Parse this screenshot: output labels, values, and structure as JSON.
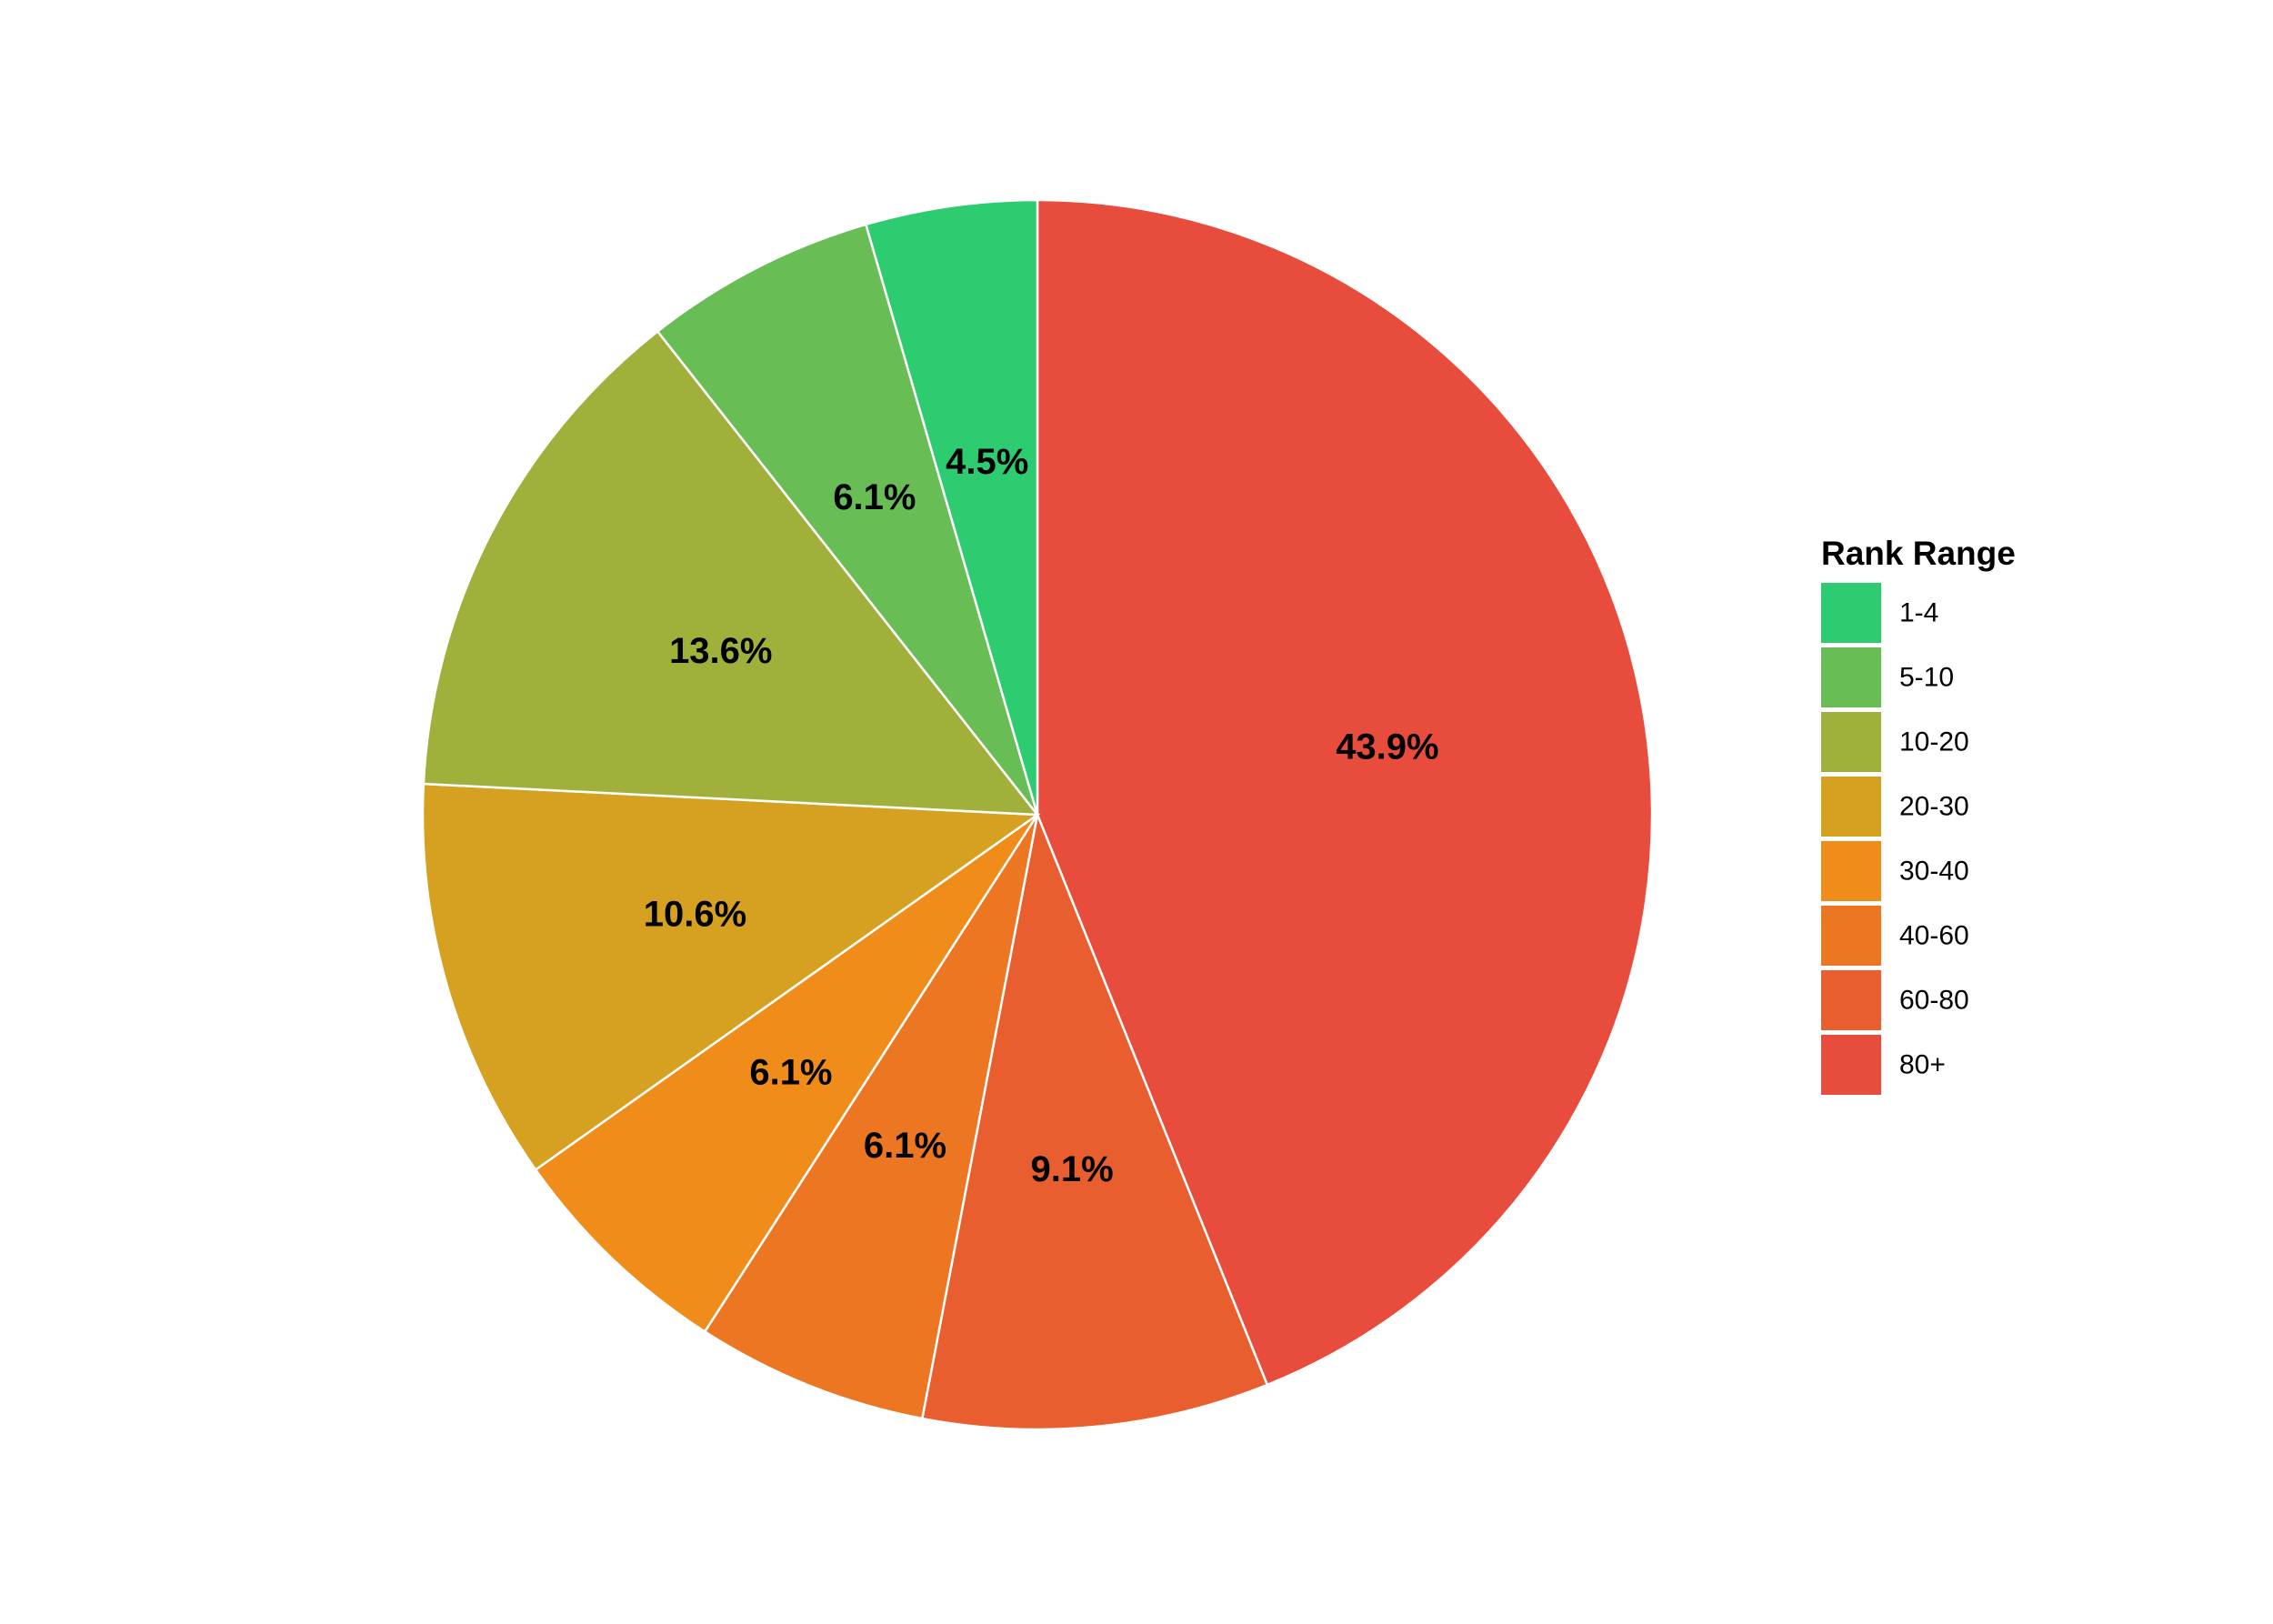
{
  "chart_data": {
    "type": "pie",
    "legend_title": "Rank Range",
    "legend_position": "right",
    "start_angle": "12 o'clock",
    "direction": "clockwise",
    "slices": [
      {
        "category": "80+",
        "value": 43.9,
        "label": "43.9%",
        "color": "#E74C3C"
      },
      {
        "category": "60-80",
        "value": 9.1,
        "label": "9.1%",
        "color": "#E95E2F"
      },
      {
        "category": "40-60",
        "value": 6.1,
        "label": "6.1%",
        "color": "#ED7623"
      },
      {
        "category": "30-40",
        "value": 6.1,
        "label": "6.1%",
        "color": "#F08C1A"
      },
      {
        "category": "20-30",
        "value": 10.6,
        "label": "10.6%",
        "color": "#D6A020"
      },
      {
        "category": "10-20",
        "value": 13.6,
        "label": "13.6%",
        "color": "#A0B03B"
      },
      {
        "category": "5-10",
        "value": 6.1,
        "label": "6.1%",
        "color": "#68BD54"
      },
      {
        "category": "1-4",
        "value": 4.5,
        "label": "4.5%",
        "color": "#2ECC71"
      }
    ],
    "legend_order": [
      "1-4",
      "5-10",
      "10-20",
      "20-30",
      "30-40",
      "40-60",
      "60-80",
      "80+"
    ]
  }
}
